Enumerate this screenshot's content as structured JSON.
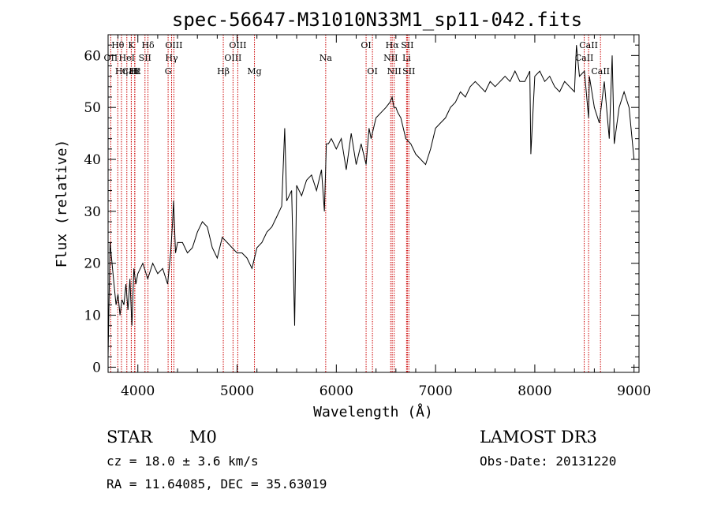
{
  "chart_data": {
    "type": "line",
    "title": "spec-56647-M31010N33M1_sp11-042.fits",
    "xlabel": "Wavelength (Å)",
    "ylabel": "Flux (relative)",
    "xlim": [
      3700,
      9050
    ],
    "ylim": [
      -1,
      64
    ],
    "x_ticks": [
      4000,
      5000,
      6000,
      7000,
      8000,
      9000
    ],
    "y_ticks": [
      0,
      10,
      20,
      30,
      40,
      50,
      60
    ],
    "grid": false,
    "series": [
      {
        "color": "#000000",
        "x": [
          3700,
          3720,
          3740,
          3760,
          3780,
          3800,
          3820,
          3840,
          3860,
          3880,
          3900,
          3920,
          3940,
          3960,
          3980,
          4000,
          4050,
          4100,
          4150,
          4200,
          4250,
          4300,
          4330,
          4350,
          4360,
          4380,
          4400,
          4450,
          4500,
          4550,
          4600,
          4650,
          4700,
          4750,
          4800,
          4850,
          4900,
          4950,
          5000,
          5050,
          5100,
          5150,
          5200,
          5250,
          5300,
          5350,
          5400,
          5450,
          5480,
          5500,
          5550,
          5580,
          5600,
          5650,
          5700,
          5750,
          5800,
          5850,
          5880,
          5900,
          5920,
          5950,
          6000,
          6050,
          6100,
          6150,
          6200,
          6250,
          6300,
          6330,
          6350,
          6400,
          6450,
          6500,
          6540,
          6563,
          6580,
          6600,
          6620,
          6650,
          6700,
          6750,
          6800,
          6850,
          6900,
          6950,
          7000,
          7050,
          7100,
          7150,
          7200,
          7250,
          7300,
          7350,
          7400,
          7450,
          7500,
          7550,
          7600,
          7650,
          7700,
          7750,
          7800,
          7850,
          7900,
          7950,
          7960,
          8000,
          8050,
          8100,
          8150,
          8200,
          8250,
          8300,
          8350,
          8400,
          8420,
          8450,
          8500,
          8542,
          8550,
          8600,
          8650,
          8700,
          8750,
          8780,
          8800,
          8850,
          8900,
          8950,
          9000
        ],
        "y": [
          2,
          24,
          20,
          16,
          12,
          14,
          10,
          13,
          12,
          16,
          11,
          17,
          8,
          19,
          16,
          18,
          20,
          17,
          20,
          18,
          19,
          16,
          22,
          28,
          32,
          22,
          24,
          24,
          22,
          23,
          26,
          28,
          27,
          23,
          21,
          25,
          24,
          23,
          22,
          22,
          21,
          19,
          23,
          24,
          26,
          27,
          29,
          31,
          46,
          32,
          34,
          8,
          35,
          33,
          36,
          37,
          34,
          38,
          30,
          43,
          43,
          44,
          42,
          44,
          38,
          45,
          39,
          43,
          39,
          46,
          44,
          48,
          49,
          50,
          51,
          52,
          50,
          50,
          49,
          48,
          44,
          43,
          41,
          40,
          39,
          42,
          46,
          47,
          48,
          50,
          51,
          53,
          52,
          54,
          55,
          54,
          53,
          55,
          54,
          55,
          56,
          55,
          57,
          55,
          55,
          57,
          41,
          56,
          57,
          55,
          56,
          54,
          53,
          55,
          54,
          53,
          62,
          56,
          57,
          48,
          56,
          50,
          47,
          55,
          44,
          60,
          43,
          50,
          53,
          50,
          40
        ]
      }
    ],
    "line_markers": [
      {
        "label": "Hθ",
        "wavelength": 3798,
        "row": 0
      },
      {
        "label": "OII",
        "wavelength": 3727,
        "row": 1
      },
      {
        "label": "CaII",
        "wavelength": 3934,
        "row": 2
      },
      {
        "label": "K",
        "wavelength": 3934,
        "row": 0
      },
      {
        "label": "Hε",
        "wavelength": 3970,
        "row": 2
      },
      {
        "label": "HeI",
        "wavelength": 3889,
        "row": 1
      },
      {
        "label": "H",
        "wavelength": 3968,
        "row": 2
      },
      {
        "label": "Hδ",
        "wavelength": 4102,
        "row": 0
      },
      {
        "label": "SII",
        "wavelength": 4072,
        "row": 1
      },
      {
        "label": "Hη",
        "wavelength": 3835,
        "row": 2
      },
      {
        "label": "OIII",
        "wavelength": 4363,
        "row": 0
      },
      {
        "label": "Hγ",
        "wavelength": 4340,
        "row": 1
      },
      {
        "label": "G",
        "wavelength": 4305,
        "row": 2
      },
      {
        "label": "OIII",
        "wavelength": 5007,
        "row": 0
      },
      {
        "label": "OIII",
        "wavelength": 4959,
        "row": 1
      },
      {
        "label": "Hβ",
        "wavelength": 4861,
        "row": 2
      },
      {
        "label": "Mg",
        "wavelength": 5175,
        "row": 2
      },
      {
        "label": "Na",
        "wavelength": 5893,
        "row": 1
      },
      {
        "label": "OI",
        "wavelength": 6300,
        "row": 0
      },
      {
        "label": "OI",
        "wavelength": 6364,
        "row": 2
      },
      {
        "label": "Hα",
        "wavelength": 6563,
        "row": 0
      },
      {
        "label": "SII",
        "wavelength": 6716,
        "row": 0
      },
      {
        "label": "NII",
        "wavelength": 6548,
        "row": 1
      },
      {
        "label": "Li",
        "wavelength": 6708,
        "row": 1
      },
      {
        "label": "NII",
        "wavelength": 6583,
        "row": 2
      },
      {
        "label": "SII",
        "wavelength": 6731,
        "row": 2
      },
      {
        "label": "CaII",
        "wavelength": 8542,
        "row": 0
      },
      {
        "label": "CaII",
        "wavelength": 8498,
        "row": 1
      },
      {
        "label": "CaII",
        "wavelength": 8662,
        "row": 2
      }
    ],
    "marker_color": "#cc0000"
  },
  "info": {
    "class": "STAR",
    "subclass": "M0",
    "survey": "LAMOST DR3",
    "redshift": "cz = 18.0 ± 3.6 km/s",
    "obs_date": "Obs-Date: 20131220",
    "coords": "RA =  11.64085, DEC =  35.63019"
  }
}
